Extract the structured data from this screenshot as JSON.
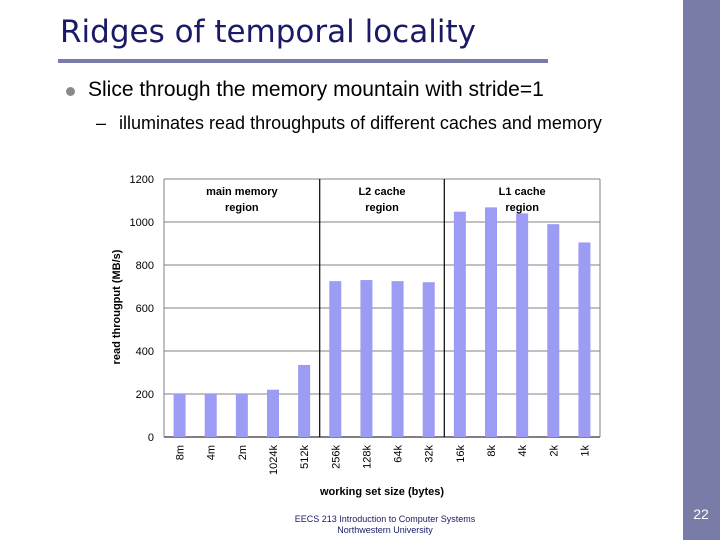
{
  "slide": {
    "title": "Ridges of temporal locality",
    "bullet1": "Slice through the memory mountain with stride=1",
    "dash": "–",
    "bullet2": "illuminates read throughputs of different caches and memory",
    "footer_line1": "EECS 213 Introduction to Computer Systems",
    "footer_line2": "Northwestern University",
    "page_number": "22"
  },
  "chart_data": {
    "type": "bar",
    "categories": [
      "8m",
      "4m",
      "2m",
      "1024k",
      "512k",
      "256k",
      "128k",
      "64k",
      "32k",
      "16k",
      "8k",
      "4k",
      "2k",
      "1k"
    ],
    "values": [
      200,
      200,
      200,
      220,
      335,
      725,
      730,
      725,
      720,
      1048,
      1068,
      1040,
      990,
      905
    ],
    "xlabel": "working set size (bytes)",
    "ylabel": "read througput (MB/s)",
    "ylim": [
      0,
      1200
    ],
    "yticks": [
      0,
      200,
      400,
      600,
      800,
      1000,
      1200
    ],
    "grid": true,
    "bar_color": "#9c9cf4",
    "regions": [
      {
        "label_line1": "main memory",
        "label_line2": "region"
      },
      {
        "label_line1": "L2 cache",
        "label_line2": "region"
      },
      {
        "label_line1": "L1 cache",
        "label_line2": "region"
      }
    ]
  }
}
